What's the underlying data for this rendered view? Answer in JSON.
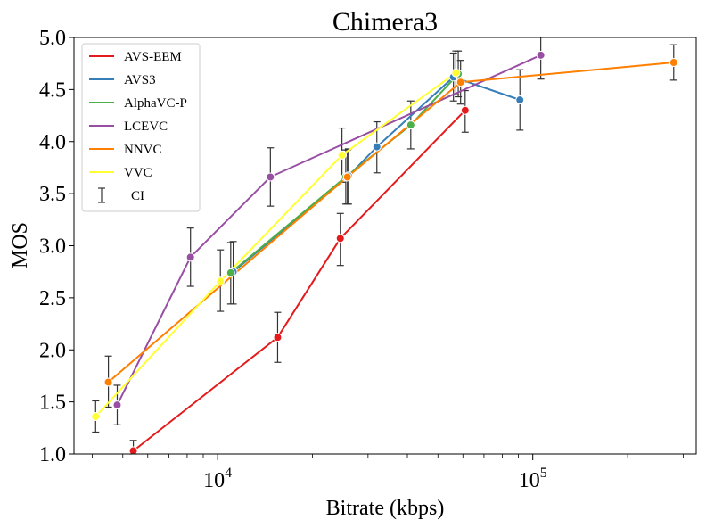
{
  "chart_data": {
    "type": "line",
    "title": "Chimera3",
    "xlabel": "Bitrate (kbps)",
    "ylabel": "MOS",
    "xscale": "log",
    "xlim": [
      3500,
      330000
    ],
    "ylim": [
      1.0,
      5.0
    ],
    "x_major_ticks": [
      {
        "value": 10000,
        "base": "10",
        "exp": "4"
      },
      {
        "value": 100000,
        "base": "10",
        "exp": "5"
      }
    ],
    "y_ticks": [
      "1.0",
      "1.5",
      "2.0",
      "2.5",
      "3.0",
      "3.5",
      "4.0",
      "4.5",
      "5.0"
    ],
    "grid": false,
    "legend": {
      "position": "top-left",
      "ci_label": "CI"
    },
    "series": [
      {
        "name": "AVS-EEM",
        "color": "#e41a1c",
        "points": [
          {
            "x": 5400,
            "y": 1.03,
            "ci": [
              0.94,
              1.13
            ]
          },
          {
            "x": 15500,
            "y": 2.12,
            "ci": [
              1.88,
              2.36
            ]
          },
          {
            "x": 24500,
            "y": 3.07,
            "ci": [
              2.81,
              3.31
            ]
          },
          {
            "x": 61000,
            "y": 4.3,
            "ci": [
              4.09,
              4.49
            ]
          }
        ]
      },
      {
        "name": "AVS3",
        "color": "#377eb8",
        "points": [
          {
            "x": 11200,
            "y": 2.75,
            "ci": [
              2.44,
              3.04
            ]
          },
          {
            "x": 26000,
            "y": 3.67,
            "ci": [
              3.4,
              3.93
            ]
          },
          {
            "x": 32000,
            "y": 3.95,
            "ci": [
              3.7,
              4.19
            ]
          },
          {
            "x": 56000,
            "y": 4.62,
            "ci": [
              4.39,
              4.85
            ]
          },
          {
            "x": 91000,
            "y": 4.4,
            "ci": [
              4.11,
              4.69
            ]
          }
        ]
      },
      {
        "name": "AlphaVC-P",
        "color": "#4daf4a",
        "points": [
          {
            "x": 11000,
            "y": 2.74,
            "ci": [
              2.44,
              3.03
            ]
          },
          {
            "x": 25500,
            "y": 3.66,
            "ci": [
              3.4,
              3.92
            ]
          },
          {
            "x": 41000,
            "y": 4.16,
            "ci": [
              3.93,
              4.39
            ]
          },
          {
            "x": 58000,
            "y": 4.65,
            "ci": [
              4.43,
              4.87
            ]
          }
        ]
      },
      {
        "name": "LCEVC",
        "color": "#984ea3",
        "points": [
          {
            "x": 4800,
            "y": 1.47,
            "ci": [
              1.28,
              1.66
            ]
          },
          {
            "x": 8200,
            "y": 2.89,
            "ci": [
              2.61,
              3.17
            ]
          },
          {
            "x": 14700,
            "y": 3.66,
            "ci": [
              3.38,
              3.94
            ]
          },
          {
            "x": 106000,
            "y": 4.83,
            "ci": [
              4.6,
              5.06
            ]
          }
        ]
      },
      {
        "name": "NNVC",
        "color": "#ff7f00",
        "points": [
          {
            "x": 4500,
            "y": 1.69,
            "ci": [
              1.45,
              1.94
            ]
          },
          {
            "x": 25800,
            "y": 3.66,
            "ci": [
              3.4,
              3.92
            ]
          },
          {
            "x": 59000,
            "y": 4.57,
            "ci": [
              4.36,
              4.78
            ]
          },
          {
            "x": 280000,
            "y": 4.76,
            "ci": [
              4.59,
              4.93
            ]
          }
        ]
      },
      {
        "name": "VVC",
        "color": "#ffff33",
        "points": [
          {
            "x": 4100,
            "y": 1.36,
            "ci": [
              1.21,
              1.51
            ]
          },
          {
            "x": 10200,
            "y": 2.66,
            "ci": [
              2.37,
              2.96
            ]
          },
          {
            "x": 24800,
            "y": 3.87,
            "ci": [
              3.61,
              4.13
            ]
          },
          {
            "x": 57000,
            "y": 4.66,
            "ci": [
              4.45,
              4.87
            ]
          }
        ]
      }
    ]
  }
}
